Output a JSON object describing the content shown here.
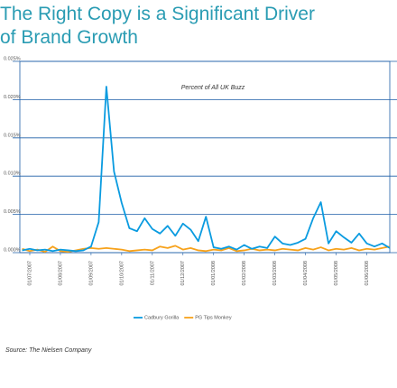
{
  "chart_data": {
    "type": "line",
    "title": [
      "The Right Copy is a Significant Driver",
      "of Brand Growth"
    ],
    "annotation": "Percent of All UK Buzz",
    "source": "Source: The Nielsen Company",
    "categories": [
      null,
      "01/07/2007",
      null,
      null,
      null,
      "01/08/2007",
      null,
      null,
      null,
      "01/09/2007",
      null,
      null,
      null,
      "01/10/2007",
      null,
      null,
      null,
      "01/11/2007",
      null,
      null,
      null,
      "01/12/2007",
      null,
      null,
      null,
      "01/01/2008",
      null,
      null,
      null,
      "01/02/2008",
      null,
      null,
      null,
      "01/03/2008",
      null,
      null,
      null,
      "01/04/2008",
      null,
      null,
      null,
      "01/05/2008",
      null,
      null,
      null,
      "01/06/2008",
      null,
      null,
      null
    ],
    "series": [
      {
        "name": "Cadbury Gorilla",
        "color": "#0a9be0",
        "values": [
          0.0003,
          0.0005,
          0.0003,
          0.0004,
          0.0002,
          0.0004,
          0.0003,
          0.0002,
          0.0003,
          0.0008,
          0.004,
          0.0217,
          0.0106,
          0.0065,
          0.0032,
          0.0028,
          0.0045,
          0.0031,
          0.0025,
          0.0035,
          0.0022,
          0.0038,
          0.003,
          0.0015,
          0.0047,
          0.0007,
          0.0005,
          0.0008,
          0.0004,
          0.001,
          0.0005,
          0.0008,
          0.0006,
          0.0021,
          0.0012,
          0.001,
          0.0013,
          0.0018,
          0.0045,
          0.0066,
          0.0012,
          0.0028,
          0.002,
          0.0013,
          0.0025,
          0.0012,
          0.0008,
          0.0012,
          0.0006
        ]
      },
      {
        "name": "PG Tips Monkey",
        "color": "#f7a21b",
        "values": [
          0.0005,
          0.0002,
          0.0004,
          0.0001,
          0.0008,
          0.0002,
          0.0001,
          0.0003,
          0.0005,
          0.0006,
          0.0005,
          0.0006,
          0.0005,
          0.0004,
          0.0002,
          0.0003,
          0.0004,
          0.0003,
          0.0008,
          0.0006,
          0.0009,
          0.0004,
          0.0006,
          0.0003,
          0.0002,
          0.0004,
          0.0003,
          0.0006,
          0.0002,
          0.0003,
          0.0005,
          0.0003,
          0.0004,
          0.0003,
          0.0005,
          0.0004,
          0.0003,
          0.0006,
          0.0004,
          0.0007,
          0.0003,
          0.0005,
          0.0004,
          0.0006,
          0.0003,
          0.0005,
          0.0004,
          0.0006,
          0.0008
        ]
      }
    ],
    "ylim": [
      0,
      0.025
    ],
    "yticks": [
      {
        "value": 0,
        "label": "0.000%"
      },
      {
        "value": 0.005,
        "label": "0.005%"
      },
      {
        "value": 0.01,
        "label": "0.010%"
      },
      {
        "value": 0.015,
        "label": "0.015%"
      },
      {
        "value": 0.02,
        "label": "0.020%"
      },
      {
        "value": 0.025,
        "label": "0.025%"
      }
    ],
    "grid": true
  }
}
